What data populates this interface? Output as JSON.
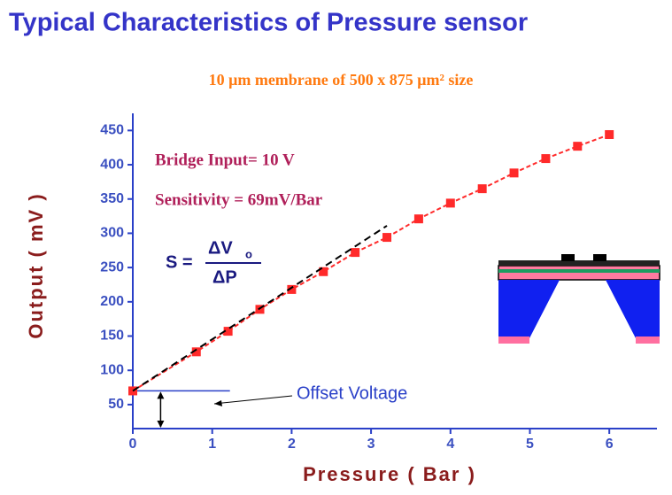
{
  "chart_data": {
    "type": "line",
    "title": "Typical Characteristics of Pressure sensor",
    "subtitle": "10 μm membrane of 500 x 875 μm² size",
    "x_label": "Pressure ( Bar )",
    "y_label": "Output ( mV )",
    "annotations": [
      "Bridge Input= 10 V",
      "Sensitivity = 69mV/Bar",
      "Offset Voltage"
    ],
    "formula": {
      "lhs": "S =",
      "numerator": "ΔV",
      "numerator_sub": "o",
      "denominator": "ΔP"
    },
    "series": [
      {
        "color": "#ff2a2a",
        "x": [
          0,
          0.8,
          1.2,
          1.6,
          2.0,
          2.4,
          2.8,
          3.2,
          3.6,
          4.0,
          4.4,
          4.8,
          5.2,
          5.6,
          6.0
        ],
        "values": [
          70,
          127,
          157,
          189,
          218,
          244,
          272,
          294,
          321,
          344,
          365,
          388,
          409,
          427,
          444
        ]
      },
      {
        "color": "#000000",
        "x": [
          0,
          3.2
        ],
        "values": [
          70,
          311
        ]
      }
    ],
    "xlim": [
      0,
      6.6
    ],
    "xticks": [
      0,
      1,
      2,
      3,
      4,
      5,
      6
    ],
    "ylim": [
      15,
      475
    ],
    "yticks": [
      50,
      100,
      150,
      200,
      250,
      300,
      350,
      400,
      450
    ]
  }
}
